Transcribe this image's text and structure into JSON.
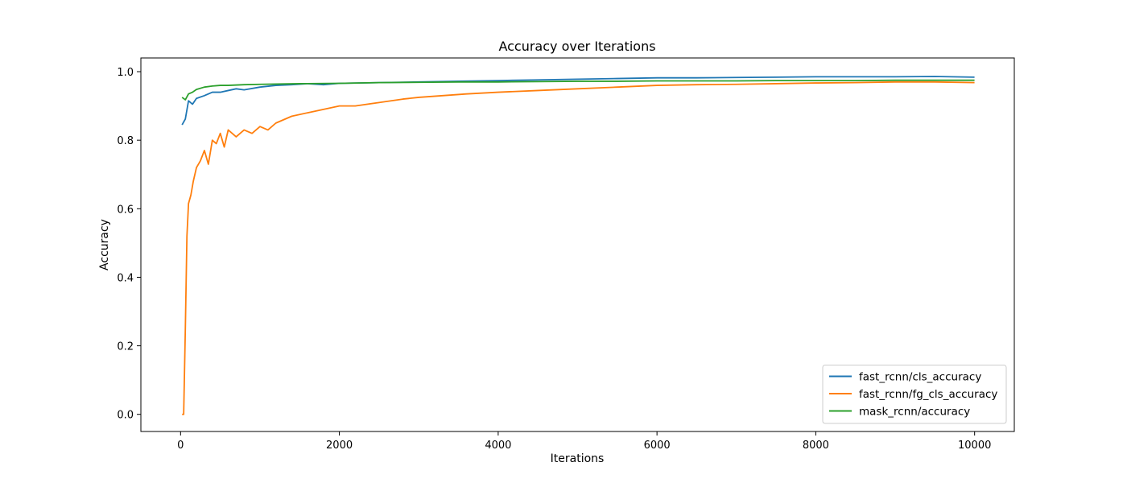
{
  "chart_data": {
    "type": "line",
    "title": "Accuracy over Iterations",
    "xlabel": "Iterations",
    "ylabel": "Accuracy",
    "xlim": [
      -500,
      10500
    ],
    "ylim": [
      -0.05,
      1.04
    ],
    "xticks": [
      0,
      2000,
      4000,
      6000,
      8000,
      10000
    ],
    "yticks": [
      0.0,
      0.2,
      0.4,
      0.6,
      0.8,
      1.0
    ],
    "xtick_labels": [
      "0",
      "2000",
      "4000",
      "6000",
      "8000",
      "10000"
    ],
    "ytick_labels": [
      "0.0",
      "0.2",
      "0.4",
      "0.6",
      "0.8",
      "1.0"
    ],
    "grid": false,
    "legend_position": "lower right",
    "series": [
      {
        "name": "fast_rcnn/cls_accuracy",
        "color": "#1f77b4",
        "x": [
          19,
          60,
          100,
          150,
          200,
          300,
          400,
          500,
          600,
          700,
          800,
          1000,
          1200,
          1400,
          1600,
          1800,
          2000,
          2500,
          3000,
          3500,
          4000,
          4500,
          5000,
          5500,
          6000,
          6500,
          7000,
          7500,
          8000,
          8500,
          9000,
          9500,
          9999
        ],
        "values": [
          0.845,
          0.862,
          0.915,
          0.905,
          0.922,
          0.93,
          0.94,
          0.94,
          0.945,
          0.95,
          0.947,
          0.955,
          0.96,
          0.962,
          0.965,
          0.962,
          0.966,
          0.968,
          0.97,
          0.972,
          0.974,
          0.976,
          0.978,
          0.98,
          0.982,
          0.982,
          0.983,
          0.984,
          0.985,
          0.985,
          0.985,
          0.986,
          0.984
        ]
      },
      {
        "name": "fast_rcnn/fg_cls_accuracy",
        "color": "#ff7f0e",
        "x": [
          19,
          39,
          60,
          80,
          100,
          130,
          160,
          200,
          250,
          300,
          350,
          400,
          450,
          500,
          550,
          600,
          700,
          800,
          900,
          1000,
          1100,
          1200,
          1400,
          1600,
          1800,
          2000,
          2200,
          2500,
          2800,
          3000,
          3300,
          3600,
          4000,
          4500,
          5000,
          5500,
          6000,
          6500,
          7000,
          7500,
          8000,
          8500,
          9000,
          9500,
          9999
        ],
        "values": [
          0.0,
          0.0,
          0.25,
          0.52,
          0.615,
          0.64,
          0.68,
          0.72,
          0.74,
          0.77,
          0.73,
          0.8,
          0.79,
          0.82,
          0.78,
          0.83,
          0.81,
          0.83,
          0.82,
          0.84,
          0.83,
          0.85,
          0.87,
          0.88,
          0.89,
          0.9,
          0.9,
          0.91,
          0.92,
          0.925,
          0.93,
          0.935,
          0.94,
          0.945,
          0.95,
          0.955,
          0.96,
          0.962,
          0.963,
          0.965,
          0.967,
          0.968,
          0.97,
          0.97,
          0.968
        ]
      },
      {
        "name": "mask_rcnn/accuracy",
        "color": "#2ca02c",
        "x": [
          19,
          60,
          100,
          150,
          200,
          300,
          400,
          500,
          600,
          800,
          1000,
          1500,
          2000,
          2500,
          3000,
          3500,
          4000,
          4500,
          5000,
          5500,
          6000,
          6500,
          7000,
          7500,
          8000,
          8500,
          9000,
          9500,
          9999
        ],
        "values": [
          0.925,
          0.918,
          0.935,
          0.94,
          0.948,
          0.955,
          0.958,
          0.96,
          0.96,
          0.962,
          0.963,
          0.965,
          0.966,
          0.968,
          0.969,
          0.97,
          0.97,
          0.971,
          0.972,
          0.972,
          0.973,
          0.973,
          0.973,
          0.974,
          0.974,
          0.974,
          0.975,
          0.975,
          0.975
        ]
      }
    ]
  }
}
